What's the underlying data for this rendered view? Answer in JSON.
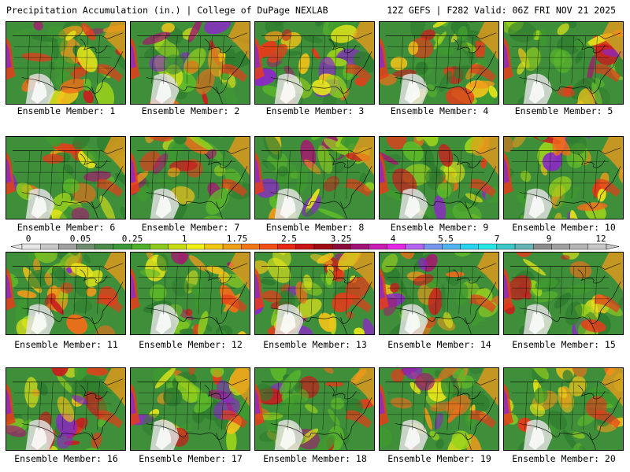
{
  "header": {
    "title_left": "Precipitation Accumulation (in.) | College of DuPage NEXLAB",
    "title_right": "12Z GEFS | F282 Valid: 06Z FRI NOV 21 2025"
  },
  "panels": [
    {
      "label": "Ensemble Member: 1"
    },
    {
      "label": "Ensemble Member: 2"
    },
    {
      "label": "Ensemble Member: 3"
    },
    {
      "label": "Ensemble Member: 4"
    },
    {
      "label": "Ensemble Member: 5"
    },
    {
      "label": "Ensemble Member: 6"
    },
    {
      "label": "Ensemble Member: 7"
    },
    {
      "label": "Ensemble Member: 8"
    },
    {
      "label": "Ensemble Member: 9"
    },
    {
      "label": "Ensemble Member: 10"
    },
    {
      "label": "Ensemble Member: 11"
    },
    {
      "label": "Ensemble Member: 12"
    },
    {
      "label": "Ensemble Member: 13"
    },
    {
      "label": "Ensemble Member: 14"
    },
    {
      "label": "Ensemble Member: 15"
    },
    {
      "label": "Ensemble Member: 16"
    },
    {
      "label": "Ensemble Member: 17"
    },
    {
      "label": "Ensemble Member: 18"
    },
    {
      "label": "Ensemble Member: 19"
    },
    {
      "label": "Ensemble Member: 20"
    }
  ],
  "colorbar": {
    "labels": [
      "0",
      "0.05",
      "0.25",
      "1",
      "1.75",
      "2.5",
      "3.25",
      "4",
      "5.5",
      "7",
      "9",
      "12"
    ],
    "colors": [
      "#e6e6e6",
      "#c8c8c8",
      "#a0a0a0",
      "#6e8c6e",
      "#4a8c4a",
      "#3a9a3a",
      "#4fb02a",
      "#8cc81e",
      "#c8dc14",
      "#f0f014",
      "#f0c814",
      "#f0a014",
      "#f07814",
      "#f05014",
      "#e62814",
      "#c81414",
      "#a00a14",
      "#8c0a3c",
      "#a0147a",
      "#c81eb4",
      "#e628e6",
      "#b464f0",
      "#7896f0",
      "#50b4f0",
      "#28d2f0",
      "#28e6e6",
      "#3cc8c8",
      "#64b4b4",
      "#8c8c8c",
      "#a0a0a0",
      "#b4b4b4",
      "#c8c8c8"
    ]
  }
}
